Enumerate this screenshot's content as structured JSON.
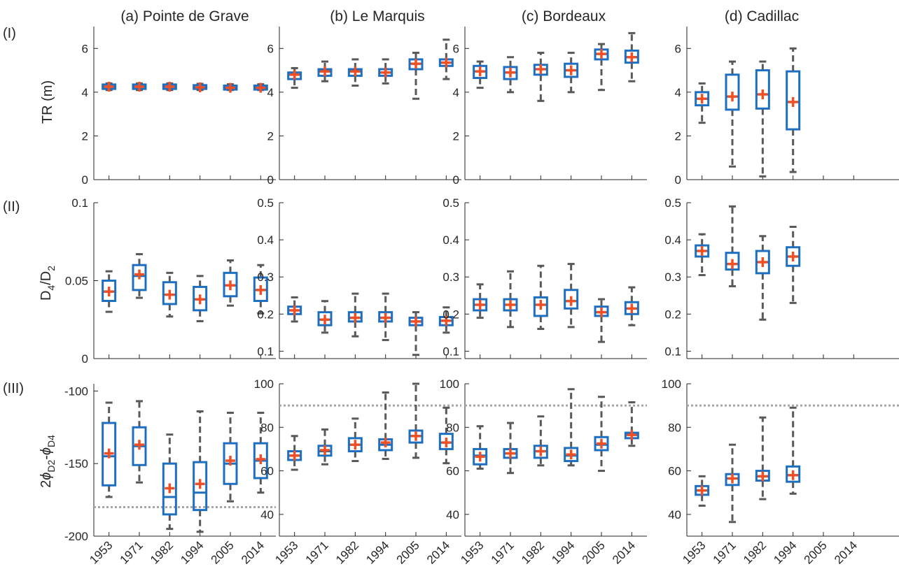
{
  "colors": {
    "box": "#1f6fc0",
    "whisker": "#595959",
    "mean": "#f04e23",
    "reference_line": "#a6a6a6"
  },
  "chart_data": {
    "type": "box",
    "columns": [
      "(a) Pointe de Grave",
      "(b) Le Marquis",
      "(c) Bordeaux",
      "(d) Cadillac"
    ],
    "rows": [
      "(I)",
      "(II)",
      "(III)"
    ],
    "categories": [
      "1953",
      "1971",
      "1982",
      "1994",
      "2005",
      "2014"
    ],
    "row_ylabels": [
      "TR (m)",
      "D4/D2",
      "2φD2-φD4"
    ],
    "panels": [
      {
        "row": 0,
        "col": 0,
        "ylim": [
          0,
          7
        ],
        "yticks": [
          "0",
          "2",
          "4",
          "6"
        ],
        "boxes": [
          {
            "cat": "1953",
            "min": 4.1,
            "q1": 4.15,
            "med": 4.25,
            "q3": 4.35,
            "max": 4.4,
            "mean": 4.25
          },
          {
            "cat": "1971",
            "min": 4.1,
            "q1": 4.15,
            "med": 4.25,
            "q3": 4.35,
            "max": 4.4,
            "mean": 4.25
          },
          {
            "cat": "1982",
            "min": 4.1,
            "q1": 4.15,
            "med": 4.25,
            "q3": 4.35,
            "max": 4.4,
            "mean": 4.25
          },
          {
            "cat": "1994",
            "min": 4.1,
            "q1": 4.15,
            "med": 4.22,
            "q3": 4.32,
            "max": 4.38,
            "mean": 4.22
          },
          {
            "cat": "2005",
            "min": 4.1,
            "q1": 4.12,
            "med": 4.2,
            "q3": 4.3,
            "max": 4.36,
            "mean": 4.2
          },
          {
            "cat": "2014",
            "min": 4.1,
            "q1": 4.12,
            "med": 4.2,
            "q3": 4.3,
            "max": 4.36,
            "mean": 4.2
          }
        ]
      },
      {
        "row": 0,
        "col": 1,
        "ylim": [
          0,
          7
        ],
        "yticks": [
          "0",
          "2",
          "4",
          "6"
        ],
        "boxes": [
          {
            "cat": "1953",
            "min": 4.2,
            "q1": 4.6,
            "med": 4.8,
            "q3": 4.9,
            "max": 5.1,
            "mean": 4.8
          },
          {
            "cat": "1971",
            "min": 4.5,
            "q1": 4.75,
            "med": 4.95,
            "q3": 5.05,
            "max": 5.4,
            "mean": 4.95
          },
          {
            "cat": "1982",
            "min": 4.3,
            "q1": 4.75,
            "med": 4.95,
            "q3": 5.05,
            "max": 5.5,
            "mean": 4.95
          },
          {
            "cat": "1994",
            "min": 4.4,
            "q1": 4.75,
            "med": 4.9,
            "q3": 5.05,
            "max": 5.5,
            "mean": 4.9
          },
          {
            "cat": "2005",
            "min": 3.7,
            "q1": 5.05,
            "med": 5.3,
            "q3": 5.5,
            "max": 5.8,
            "mean": 5.3
          },
          {
            "cat": "2014",
            "min": 4.6,
            "q1": 5.2,
            "med": 5.35,
            "q3": 5.5,
            "max": 6.4,
            "mean": 5.35
          }
        ]
      },
      {
        "row": 0,
        "col": 2,
        "ylim": [
          0,
          7
        ],
        "yticks": [
          "0",
          "2",
          "4",
          "6"
        ],
        "boxes": [
          {
            "cat": "1953",
            "min": 4.2,
            "q1": 4.65,
            "med": 4.95,
            "q3": 5.2,
            "max": 5.4,
            "mean": 4.95
          },
          {
            "cat": "1971",
            "min": 4.0,
            "q1": 4.6,
            "med": 4.9,
            "q3": 5.15,
            "max": 5.6,
            "mean": 4.9
          },
          {
            "cat": "1982",
            "min": 3.6,
            "q1": 4.8,
            "med": 5.05,
            "q3": 5.25,
            "max": 5.8,
            "mean": 5.05
          },
          {
            "cat": "1994",
            "min": 4.0,
            "q1": 4.7,
            "med": 5.0,
            "q3": 5.3,
            "max": 5.8,
            "mean": 5.0
          },
          {
            "cat": "2005",
            "min": 4.1,
            "q1": 5.5,
            "med": 5.75,
            "q3": 5.95,
            "max": 6.2,
            "mean": 5.75
          },
          {
            "cat": "2014",
            "min": 4.5,
            "q1": 5.35,
            "med": 5.6,
            "q3": 5.9,
            "max": 6.7,
            "mean": 5.6
          }
        ]
      },
      {
        "row": 0,
        "col": 3,
        "ylim": [
          0,
          7
        ],
        "yticks": [
          "0",
          "2",
          "4",
          "6"
        ],
        "boxes": [
          {
            "cat": "1953",
            "min": 2.6,
            "q1": 3.4,
            "med": 3.7,
            "q3": 4.0,
            "max": 4.4,
            "mean": 3.7
          },
          {
            "cat": "1971",
            "min": 0.6,
            "q1": 3.2,
            "med": 3.8,
            "q3": 4.8,
            "max": 5.4,
            "mean": 3.8
          },
          {
            "cat": "1982",
            "min": 0.15,
            "q1": 3.25,
            "med": 3.9,
            "q3": 5.0,
            "max": 5.4,
            "mean": 3.9
          },
          {
            "cat": "1994",
            "min": 0.35,
            "q1": 2.3,
            "med": 3.55,
            "q3": 4.95,
            "max": 6.0,
            "mean": 3.55
          }
        ]
      },
      {
        "row": 1,
        "col": 0,
        "ylim": [
          0,
          0.1
        ],
        "yticks": [
          "0",
          "0.05",
          "0.1"
        ],
        "boxes": [
          {
            "cat": "1953",
            "min": 0.03,
            "q1": 0.037,
            "med": 0.043,
            "q3": 0.05,
            "max": 0.056,
            "mean": 0.043
          },
          {
            "cat": "1971",
            "min": 0.039,
            "q1": 0.044,
            "med": 0.053,
            "q3": 0.06,
            "max": 0.067,
            "mean": 0.054
          },
          {
            "cat": "1982",
            "min": 0.027,
            "q1": 0.035,
            "med": 0.041,
            "q3": 0.049,
            "max": 0.055,
            "mean": 0.041
          },
          {
            "cat": "1994",
            "min": 0.024,
            "q1": 0.031,
            "med": 0.038,
            "q3": 0.046,
            "max": 0.053,
            "mean": 0.038
          },
          {
            "cat": "2005",
            "min": 0.034,
            "q1": 0.04,
            "med": 0.047,
            "q3": 0.055,
            "max": 0.063,
            "mean": 0.047
          },
          {
            "cat": "2014",
            "min": 0.029,
            "q1": 0.037,
            "med": 0.044,
            "q3": 0.052,
            "max": 0.06,
            "mean": 0.044
          }
        ]
      },
      {
        "row": 1,
        "col": 1,
        "ylim": [
          0.08,
          0.5
        ],
        "yticks": [
          "0.1",
          "0.2",
          "0.3",
          "0.4",
          "0.5"
        ],
        "boxes": [
          {
            "cat": "1953",
            "min": 0.18,
            "q1": 0.2,
            "med": 0.21,
            "q3": 0.22,
            "max": 0.245,
            "mean": 0.21
          },
          {
            "cat": "1971",
            "min": 0.15,
            "q1": 0.17,
            "med": 0.185,
            "q3": 0.205,
            "max": 0.235,
            "mean": 0.185
          },
          {
            "cat": "1982",
            "min": 0.14,
            "q1": 0.18,
            "med": 0.19,
            "q3": 0.205,
            "max": 0.255,
            "mean": 0.19
          },
          {
            "cat": "1994",
            "min": 0.13,
            "q1": 0.18,
            "med": 0.19,
            "q3": 0.205,
            "max": 0.255,
            "mean": 0.19
          },
          {
            "cat": "2005",
            "min": 0.09,
            "q1": 0.17,
            "med": 0.18,
            "q3": 0.19,
            "max": 0.205,
            "mean": 0.18
          },
          {
            "cat": "2014",
            "min": 0.15,
            "q1": 0.17,
            "med": 0.182,
            "q3": 0.192,
            "max": 0.218,
            "mean": 0.182
          }
        ]
      },
      {
        "row": 1,
        "col": 2,
        "ylim": [
          0.08,
          0.5
        ],
        "yticks": [
          "0.1",
          "0.2",
          "0.3",
          "0.4",
          "0.5"
        ],
        "boxes": [
          {
            "cat": "1953",
            "min": 0.19,
            "q1": 0.21,
            "med": 0.225,
            "q3": 0.24,
            "max": 0.28,
            "mean": 0.225
          },
          {
            "cat": "1971",
            "min": 0.165,
            "q1": 0.21,
            "med": 0.225,
            "q3": 0.24,
            "max": 0.315,
            "mean": 0.225
          },
          {
            "cat": "1982",
            "min": 0.16,
            "q1": 0.195,
            "med": 0.225,
            "q3": 0.245,
            "max": 0.33,
            "mean": 0.225
          },
          {
            "cat": "1994",
            "min": 0.165,
            "q1": 0.215,
            "med": 0.235,
            "q3": 0.265,
            "max": 0.335,
            "mean": 0.235
          },
          {
            "cat": "2005",
            "min": 0.125,
            "q1": 0.195,
            "med": 0.205,
            "q3": 0.22,
            "max": 0.24,
            "mean": 0.205
          },
          {
            "cat": "2014",
            "min": 0.17,
            "q1": 0.2,
            "med": 0.215,
            "q3": 0.232,
            "max": 0.272,
            "mean": 0.215
          }
        ]
      },
      {
        "row": 1,
        "col": 3,
        "ylim": [
          0.08,
          0.5
        ],
        "yticks": [
          "0.1",
          "0.2",
          "0.3",
          "0.4",
          "0.5"
        ],
        "boxes": [
          {
            "cat": "1953",
            "min": 0.305,
            "q1": 0.355,
            "med": 0.37,
            "q3": 0.385,
            "max": 0.415,
            "mean": 0.37
          },
          {
            "cat": "1971",
            "min": 0.275,
            "q1": 0.32,
            "med": 0.335,
            "q3": 0.365,
            "max": 0.49,
            "mean": 0.335
          },
          {
            "cat": "1982",
            "min": 0.185,
            "q1": 0.31,
            "med": 0.34,
            "q3": 0.37,
            "max": 0.41,
            "mean": 0.34
          },
          {
            "cat": "1994",
            "min": 0.23,
            "q1": 0.33,
            "med": 0.355,
            "q3": 0.38,
            "max": 0.435,
            "mean": 0.355
          }
        ]
      },
      {
        "row": 2,
        "col": 0,
        "ylim": [
          -200,
          -95
        ],
        "yticks": [
          "-200",
          "-150",
          "-100"
        ],
        "ref": -180,
        "boxes": [
          {
            "cat": "1953",
            "min": -173,
            "q1": -165,
            "med": -145,
            "q3": -122,
            "max": -108,
            "mean": -143
          },
          {
            "cat": "1971",
            "min": -163,
            "q1": -151,
            "med": -138,
            "q3": -125,
            "max": -107,
            "mean": -137
          },
          {
            "cat": "1982",
            "min": -195,
            "q1": -185,
            "med": -173,
            "q3": -150,
            "max": -130,
            "mean": -167
          },
          {
            "cat": "1994",
            "min": -197,
            "q1": -182,
            "med": -170,
            "q3": -149,
            "max": -114,
            "mean": -164
          },
          {
            "cat": "2005",
            "min": -176,
            "q1": -164,
            "med": -150,
            "q3": -136,
            "max": -115,
            "mean": -148
          },
          {
            "cat": "2014",
            "min": -170,
            "q1": -160,
            "med": -148,
            "q3": -136,
            "max": -115,
            "mean": -147
          }
        ]
      },
      {
        "row": 2,
        "col": 1,
        "ylim": [
          30,
          100
        ],
        "yticks": [
          "40",
          "60",
          "80",
          "100"
        ],
        "ref": 90,
        "boxes": [
          {
            "cat": "1953",
            "min": 60.5,
            "q1": 65,
            "med": 67,
            "q3": 69,
            "max": 76,
            "mean": 67
          },
          {
            "cat": "1971",
            "min": 63,
            "q1": 67,
            "med": 69,
            "q3": 71.5,
            "max": 79,
            "mean": 69.5
          },
          {
            "cat": "1982",
            "min": 64.5,
            "q1": 69,
            "med": 72,
            "q3": 75,
            "max": 84,
            "mean": 72
          },
          {
            "cat": "1994",
            "min": 65.5,
            "q1": 69.5,
            "med": 72,
            "q3": 74.5,
            "max": 96,
            "mean": 73
          },
          {
            "cat": "2005",
            "min": 66,
            "q1": 73,
            "med": 76,
            "q3": 78.5,
            "max": 100,
            "mean": 76
          },
          {
            "cat": "2014",
            "min": 63.5,
            "q1": 70,
            "med": 73,
            "q3": 77,
            "max": 89,
            "mean": 73
          }
        ]
      },
      {
        "row": 2,
        "col": 2,
        "ylim": [
          30,
          100
        ],
        "yticks": [
          "40",
          "60",
          "80",
          "100"
        ],
        "ref": 90,
        "boxes": [
          {
            "cat": "1953",
            "min": 61,
            "q1": 63,
            "med": 67,
            "q3": 70,
            "max": 80.5,
            "mean": 66.5
          },
          {
            "cat": "1971",
            "min": 59,
            "q1": 66,
            "med": 68,
            "q3": 70,
            "max": 82,
            "mean": 68
          },
          {
            "cat": "1982",
            "min": 62.5,
            "q1": 66,
            "med": 69,
            "q3": 71.5,
            "max": 85,
            "mean": 69
          },
          {
            "cat": "1994",
            "min": 62.5,
            "q1": 64.5,
            "med": 67,
            "q3": 70.5,
            "max": 97.5,
            "mean": 67.5
          },
          {
            "cat": "2005",
            "min": 60,
            "q1": 69.5,
            "med": 72,
            "q3": 75.5,
            "max": 94,
            "mean": 72.5
          },
          {
            "cat": "2014",
            "min": 71.5,
            "q1": 75,
            "med": 76.5,
            "q3": 77.5,
            "max": 91.5,
            "mean": 76.5
          }
        ]
      },
      {
        "row": 2,
        "col": 3,
        "ylim": [
          30,
          100
        ],
        "yticks": [
          "40",
          "60",
          "80",
          "100"
        ],
        "ref": 90,
        "boxes": [
          {
            "cat": "1953",
            "min": 44,
            "q1": 49,
            "med": 51,
            "q3": 53,
            "max": 57.5,
            "mean": 51
          },
          {
            "cat": "1971",
            "min": 36.5,
            "q1": 53.5,
            "med": 56.5,
            "q3": 58.5,
            "max": 72,
            "mean": 56.5
          },
          {
            "cat": "1982",
            "min": 47,
            "q1": 55.5,
            "med": 57.5,
            "q3": 60,
            "max": 84.5,
            "mean": 57.5
          },
          {
            "cat": "1994",
            "min": 49.5,
            "q1": 55,
            "med": 58,
            "q3": 62,
            "max": 89,
            "mean": 58
          }
        ]
      }
    ]
  }
}
